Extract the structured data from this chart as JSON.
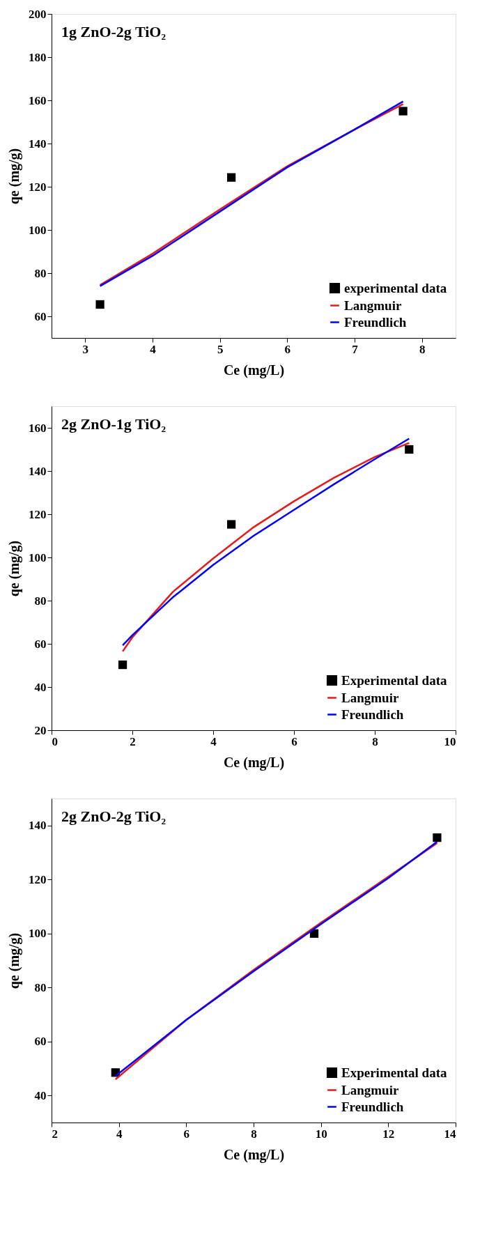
{
  "chart_data": [
    {
      "type": "scatter",
      "xlabel": "Ce (mg/L)",
      "ylabel": "qe (mg/g)",
      "annotations": [
        "1g ZnO-2g TiO₂"
      ],
      "xlim": [
        2.5,
        8.5
      ],
      "xticks": [
        3,
        4,
        5,
        6,
        7,
        8
      ],
      "ylim": [
        50,
        200
      ],
      "yticks": [
        60,
        80,
        100,
        120,
        140,
        160,
        180,
        200
      ],
      "legend": "bottom right",
      "series": [
        {
          "name": "experimental data",
          "marker": "square",
          "color": "#000000",
          "x": [
            3.22,
            5.17,
            7.72
          ],
          "values": [
            65.5,
            124.3,
            155
          ]
        },
        {
          "name": "Langmuir",
          "type": "line",
          "color": "#e41a1c",
          "x": [
            3.22,
            4,
            5,
            6,
            7,
            7.72
          ],
          "values": [
            74.5,
            89,
            109.5,
            129.5,
            146.5,
            158.3
          ]
        },
        {
          "name": "Freundlich",
          "type": "line",
          "color": "#0000ff",
          "x": [
            3.22,
            4,
            5,
            6,
            7,
            7.72
          ],
          "values": [
            74,
            88,
            108.5,
            129,
            146.5,
            159.5
          ]
        }
      ]
    },
    {
      "type": "scatter",
      "xlabel": "Ce (mg/L)",
      "ylabel": "qe (mg/g)",
      "annotations": [
        "2g ZnO-1g TiO₂"
      ],
      "xlim": [
        0,
        10
      ],
      "xticks": [
        0,
        2,
        4,
        6,
        8,
        10
      ],
      "ylim": [
        20,
        170
      ],
      "yticks": [
        20,
        40,
        60,
        80,
        100,
        120,
        140,
        160
      ],
      "legend": "bottom right",
      "series": [
        {
          "name": "Experimental data",
          "marker": "square",
          "color": "#000000",
          "x": [
            1.76,
            4.45,
            8.85
          ],
          "values": [
            50.3,
            115.3,
            150
          ]
        },
        {
          "name": "Langmuir",
          "type": "line",
          "color": "#e41a1c",
          "x": [
            1.76,
            2,
            3,
            4,
            5,
            6,
            7,
            8,
            8.85
          ],
          "values": [
            56.5,
            63,
            84,
            99.5,
            114,
            126,
            137,
            146.5,
            153
          ]
        },
        {
          "name": "Freundlich",
          "type": "line",
          "color": "#0000ff",
          "x": [
            1.76,
            2,
            3,
            4,
            5,
            6,
            7,
            8,
            8.85
          ],
          "values": [
            59.3,
            64,
            81.5,
            96.5,
            110,
            122,
            134,
            145.5,
            155
          ]
        }
      ]
    },
    {
      "type": "scatter",
      "xlabel": "Ce (mg/L)",
      "ylabel": "qe (mg/g)",
      "annotations": [
        "2g ZnO-2g TiO₂"
      ],
      "xlim": [
        2,
        14
      ],
      "xticks": [
        2,
        4,
        6,
        8,
        10,
        12,
        14
      ],
      "ylim": [
        30,
        150
      ],
      "yticks": [
        40,
        60,
        80,
        100,
        120,
        140
      ],
      "legend": "bottom right",
      "series": [
        {
          "name": "Experimental data",
          "marker": "square",
          "color": "#000000",
          "x": [
            3.9,
            9.8,
            13.45
          ],
          "values": [
            48.5,
            100,
            135.5
          ]
        },
        {
          "name": "Langmuir",
          "type": "line",
          "color": "#e41a1c",
          "x": [
            3.9,
            6,
            8,
            10,
            12,
            13.45
          ],
          "values": [
            46,
            68,
            86.5,
            104,
            121,
            133.5
          ]
        },
        {
          "name": "Freundlich",
          "type": "line",
          "color": "#0000ff",
          "x": [
            3.9,
            6,
            8,
            10,
            12,
            13.45
          ],
          "values": [
            47.2,
            68,
            86,
            103.5,
            120.5,
            134
          ]
        }
      ]
    }
  ]
}
